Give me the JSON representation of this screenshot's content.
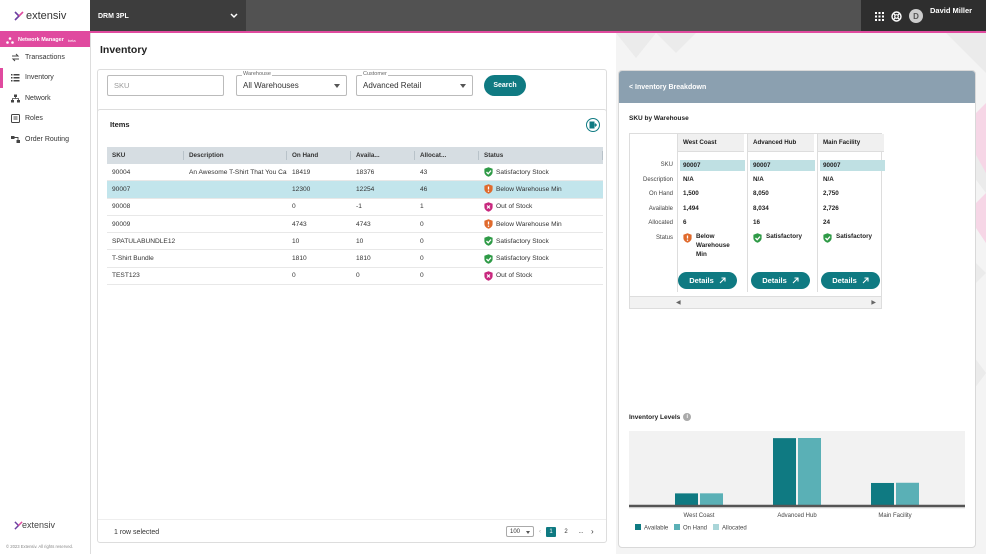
{
  "header": {
    "brand": "extensiv",
    "account": "DRM 3PL",
    "user_name": "David Miller",
    "user_initial": "D"
  },
  "sidebar": {
    "badge": "Network Manager",
    "badge_suffix": "beta",
    "items": [
      {
        "label": "Transactions",
        "icon": "transactions-icon"
      },
      {
        "label": "Inventory",
        "icon": "list-icon"
      },
      {
        "label": "Network",
        "icon": "network-icon"
      },
      {
        "label": "Roles",
        "icon": "roles-icon"
      },
      {
        "label": "Order Routing",
        "icon": "routing-icon"
      }
    ],
    "footer_brand": "extensiv",
    "copyright": "© 2023 Extensiv. All rights reserved."
  },
  "page": {
    "title": "Inventory"
  },
  "filters": {
    "sku_placeholder": "SKU",
    "warehouse_label": "Warehouse",
    "warehouse_value": "All Warehouses",
    "customer_label": "Customer",
    "customer_value": "Advanced Retail",
    "search_label": "Search"
  },
  "items": {
    "title": "Items",
    "columns": [
      "SKU",
      "Description",
      "On Hand",
      "Availa...",
      "Allocat...",
      "Status"
    ],
    "rows": [
      {
        "sku": "90004",
        "desc": "An Awesome T-Shirt That You Can Wear",
        "on_hand": "18419",
        "avail": "18376",
        "alloc": "43",
        "status": "Satisfactory Stock",
        "level": "good"
      },
      {
        "sku": "90007",
        "desc": "",
        "on_hand": "12300",
        "avail": "12254",
        "alloc": "46",
        "status": "Below Warehouse Min",
        "level": "warn"
      },
      {
        "sku": "90008",
        "desc": "",
        "on_hand": "0",
        "avail": "-1",
        "alloc": "1",
        "status": "Out of Stock",
        "level": "out"
      },
      {
        "sku": "90009",
        "desc": "",
        "on_hand": "4743",
        "avail": "4743",
        "alloc": "0",
        "status": "Below Warehouse Min",
        "level": "warn"
      },
      {
        "sku": "SPATULABUNDLE12",
        "desc": "",
        "on_hand": "10",
        "avail": "10",
        "alloc": "0",
        "status": "Satisfactory Stock",
        "level": "good"
      },
      {
        "sku": "T-Shirt Bundle",
        "desc": "",
        "on_hand": "1810",
        "avail": "1810",
        "alloc": "0",
        "status": "Satisfactory Stock",
        "level": "good"
      },
      {
        "sku": "TEST123",
        "desc": "",
        "on_hand": "0",
        "avail": "0",
        "alloc": "0",
        "status": "Out of Stock",
        "level": "out"
      }
    ],
    "selected_text": "1 row selected",
    "page_size": "100",
    "pages": [
      "1",
      "2",
      "..."
    ]
  },
  "breakdown": {
    "back_label": "< Inventory Breakdown",
    "sku_by_wh": "SKU by Warehouse",
    "row_labels": [
      "SKU",
      "Description",
      "On Hand",
      "Available",
      "Allocated",
      "Status"
    ],
    "warehouses": [
      {
        "name": "West Coast",
        "sku": "90007",
        "desc": "N/A",
        "on_hand": "1,500",
        "avail": "1,494",
        "alloc": "6",
        "status": "Below Warehouse Min",
        "level": "warn"
      },
      {
        "name": "Advanced Hub",
        "sku": "90007",
        "desc": "N/A",
        "on_hand": "8,050",
        "avail": "8,034",
        "alloc": "16",
        "status": "Satisfactory",
        "level": "good"
      },
      {
        "name": "Main Facility",
        "sku": "90007",
        "desc": "N/A",
        "on_hand": "2,750",
        "avail": "2,726",
        "alloc": "24",
        "status": "Satisfactory",
        "level": "good"
      }
    ],
    "details_label": "Details",
    "levels_title": "Inventory Levels"
  },
  "colors": {
    "teal": "#0f7a82",
    "pink": "#e04a9f",
    "good": "#2e9a46",
    "warn": "#e06a2c",
    "out": "#c8287e"
  },
  "chart_data": {
    "type": "bar",
    "categories": [
      "West Coast",
      "Advanced Hub",
      "Main Facility"
    ],
    "series": [
      {
        "name": "Available",
        "values": [
          1494,
          8034,
          2726
        ],
        "color": "#0f7a82"
      },
      {
        "name": "On Hand",
        "values": [
          1500,
          8050,
          2750
        ],
        "color": "#5ab0b6"
      },
      {
        "name": "Allocated",
        "values": [
          6,
          16,
          24
        ],
        "color": "#a9d5d8"
      }
    ],
    "legend": "bottom"
  }
}
